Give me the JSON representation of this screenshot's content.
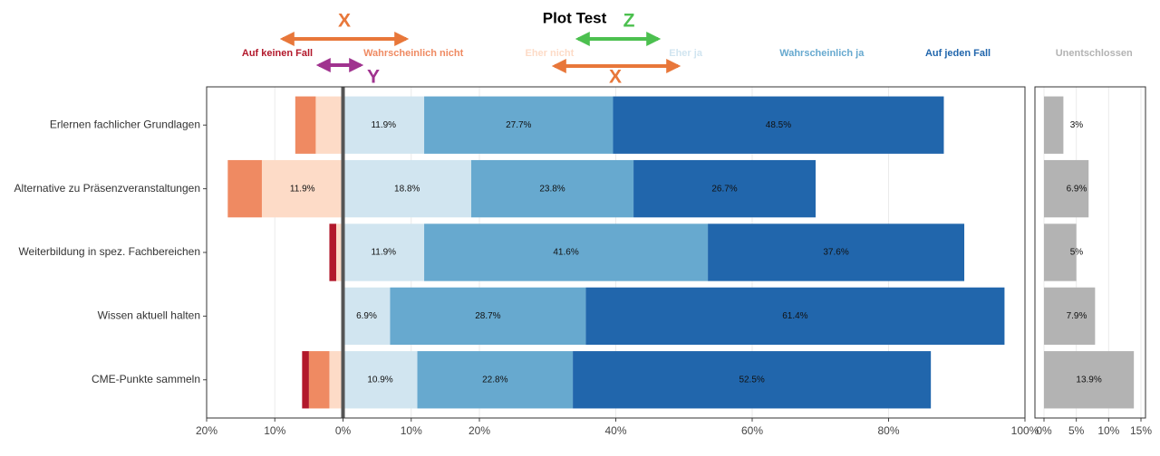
{
  "chart_data": [
    {
      "type": "diverging-bar",
      "title": "Plot Test",
      "annotations": [
        {
          "text": "X",
          "color": "#e8773a"
        },
        {
          "text": "Y",
          "color": "#a0338f"
        },
        {
          "text": "Z",
          "color": "#4cc04f"
        },
        {
          "text": "X",
          "color": "#e8773a"
        }
      ],
      "categories": [
        "Erlernen fachlicher Grundlagen",
        "Alternative zu Präsenzveranstaltungen",
        "Weiterbildung in spez. Fachbereichen",
        "Wissen aktuell halten",
        "CME-Punkte sammeln"
      ],
      "series": [
        {
          "name": "Auf keinen Fall",
          "color": "#b2182b",
          "values": [
            0,
            0,
            1.0,
            0,
            1.0
          ]
        },
        {
          "name": "Wahrscheinlich nicht",
          "color": "#ef8a62",
          "values": [
            3.0,
            5.0,
            0,
            0,
            3.0
          ]
        },
        {
          "name": "Eher nicht",
          "color": "#fddbc7",
          "values": [
            4.0,
            11.9,
            1.0,
            0,
            2.0
          ],
          "value_labels": [
            null,
            "11.9%",
            null,
            null,
            null
          ]
        },
        {
          "name": "Eher ja",
          "color": "#d1e5f0",
          "values": [
            11.9,
            18.8,
            11.9,
            6.9,
            10.9
          ],
          "value_labels": [
            "11.9%",
            "18.8%",
            "11.9%",
            "6.9%",
            "10.9%"
          ]
        },
        {
          "name": "Wahrscheinlich ja",
          "color": "#67a9cf",
          "values": [
            27.7,
            23.8,
            41.6,
            28.7,
            22.8
          ],
          "value_labels": [
            "27.7%",
            "23.8%",
            "41.6%",
            "28.7%",
            "22.8%"
          ]
        },
        {
          "name": "Auf jeden Fall",
          "color": "#2166ac",
          "values": [
            48.5,
            26.7,
            37.6,
            61.4,
            52.5
          ],
          "value_labels": [
            "48.5%",
            "26.7%",
            "37.6%",
            "61.4%",
            "52.5%"
          ]
        }
      ],
      "xlim": [
        -20,
        100
      ],
      "xticks": [
        {
          "value": -20,
          "label": "20%"
        },
        {
          "value": -10,
          "label": "10%"
        },
        {
          "value": 0,
          "label": "0%"
        },
        {
          "value": 10,
          "label": "10%"
        },
        {
          "value": 20,
          "label": "20%"
        },
        {
          "value": 40,
          "label": "40%"
        },
        {
          "value": 60,
          "label": "60%"
        },
        {
          "value": 80,
          "label": "80%"
        },
        {
          "value": 100,
          "label": "100%"
        }
      ],
      "grid": true
    },
    {
      "type": "bar",
      "series": [
        {
          "name": "Unentschlossen",
          "color": "#b3b3b3",
          "values": [
            3,
            6.9,
            5,
            7.9,
            13.9
          ],
          "value_labels": [
            "3%",
            "6.9%",
            "5%",
            "7.9%",
            "13.9%"
          ]
        }
      ],
      "xlim": [
        -1.4,
        15.7
      ],
      "xticks": [
        {
          "value": 0,
          "label": "0%"
        },
        {
          "value": 5,
          "label": "5%"
        },
        {
          "value": 10,
          "label": "10%"
        },
        {
          "value": 15,
          "label": "15%"
        }
      ],
      "grid": true
    }
  ]
}
